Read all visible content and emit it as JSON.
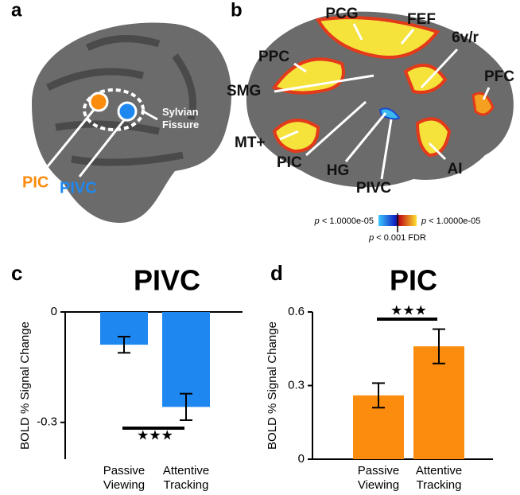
{
  "panels": {
    "a": {
      "letter": "a",
      "labels": [
        "PIC",
        "PIVC",
        "Sylvian Fissure"
      ]
    },
    "b": {
      "letter": "b",
      "labels": [
        "PCG",
        "FEF",
        "6v/r",
        "PPC",
        "PFC",
        "SMG",
        "MT+",
        "PIC",
        "HG",
        "PIVC",
        "AI"
      ],
      "colorbar": {
        "left": "p < 1.0000e-05",
        "right": "p < 1.0000e-05",
        "bottom": "p < 0.001 FDR"
      }
    }
  },
  "chart_data": [
    {
      "type": "bar",
      "letter": "c",
      "title": "PIVC",
      "ylabel": "BOLD % Signal Change",
      "categories": [
        "Passive Viewing",
        "Attentive Tracking"
      ],
      "values": [
        -0.089,
        -0.258
      ],
      "errors": [
        0.022,
        0.036
      ],
      "color": "#1e88f0",
      "ylim": [
        -0.4,
        0
      ],
      "yticks": [
        -0.3,
        0
      ],
      "annotation": "★★★"
    },
    {
      "type": "bar",
      "letter": "d",
      "title": "PIC",
      "ylabel": "BOLD % Signal Change",
      "categories": [
        "Passive Viewing",
        "Attentive Tracking"
      ],
      "values": [
        0.26,
        0.46
      ],
      "errors": [
        0.05,
        0.07
      ],
      "color": "#fb8c0e",
      "ylim": [
        0,
        0.6
      ],
      "yticks": [
        0,
        0.3,
        0.6
      ],
      "annotation": "★★★"
    }
  ]
}
